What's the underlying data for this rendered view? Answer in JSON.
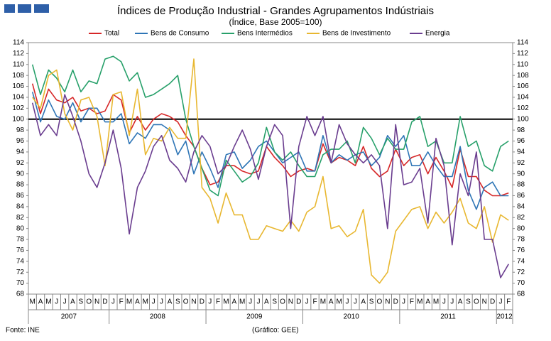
{
  "chart_data": {
    "type": "line",
    "title": "Índices de Produção Industrial - Grandes Agrupamentos  Indústriais",
    "subtitle": "(Índice, Base 2005=100)",
    "source": "Fonte: INE",
    "credit": "(Gráfico: GEE)",
    "categories": [
      "M",
      "A",
      "M",
      "J",
      "J",
      "A",
      "S",
      "O",
      "N",
      "D",
      "J",
      "F",
      "M",
      "A",
      "M",
      "J",
      "J",
      "A",
      "S",
      "O",
      "N",
      "D",
      "J",
      "F",
      "M",
      "A",
      "M",
      "J",
      "J",
      "A",
      "S",
      "O",
      "N",
      "D",
      "J",
      "F",
      "M",
      "A",
      "M",
      "J",
      "J",
      "A",
      "S",
      "O",
      "N",
      "D",
      "J",
      "F",
      "M",
      "A",
      "M",
      "J",
      "J",
      "A",
      "S",
      "O",
      "N",
      "D",
      "J",
      "F"
    ],
    "years": [
      "2007",
      "2008",
      "2009",
      "2010",
      "2011",
      "2012"
    ],
    "ylim": [
      68,
      114
    ],
    "yticks": [
      68,
      70,
      72,
      74,
      76,
      78,
      80,
      82,
      84,
      86,
      88,
      90,
      92,
      94,
      96,
      98,
      100,
      102,
      104,
      106,
      108,
      110,
      112,
      114
    ],
    "reference_line": 100,
    "series": [
      {
        "name": "Total",
        "color": "#d62728",
        "values": [
          106.5,
          101,
          105.5,
          103.5,
          103,
          104,
          101.5,
          102,
          101,
          101.5,
          104.5,
          103.5,
          97.5,
          100.5,
          98,
          100,
          101,
          100.5,
          99.5,
          97,
          95,
          91,
          88,
          88.5,
          91.5,
          91.5,
          90.5,
          90,
          90.5,
          95,
          93,
          91.5,
          89.5,
          90.5,
          91,
          90.5,
          95.5,
          92,
          93,
          92.5,
          91.5,
          95,
          91,
          89.5,
          90.5,
          94.5,
          91.5,
          93,
          93.5,
          90,
          93,
          90.5,
          87.5,
          94.5,
          89.5,
          89.5,
          87,
          86,
          86,
          86.5
        ]
      },
      {
        "name": "Bens de Consumo",
        "color": "#2e75b6",
        "values": [
          105,
          99.5,
          103.5,
          100.5,
          100,
          103,
          99.5,
          102,
          102,
          99.5,
          99.5,
          101,
          95.5,
          97.5,
          96.5,
          99,
          99,
          98,
          93.5,
          96,
          90,
          94,
          91,
          87.5,
          93.5,
          94,
          91,
          92.5,
          95,
          96,
          94,
          92,
          93,
          94,
          90.5,
          90.5,
          97,
          92,
          93.5,
          92.5,
          93.5,
          94,
          91.5,
          93,
          97,
          95,
          97,
          91.5,
          91.5,
          94,
          91.5,
          89.5,
          89.5,
          95,
          87,
          83.5,
          87.5,
          88.5,
          86,
          86
        ]
      },
      {
        "name": "Bens Intermédios",
        "color": "#27a06a",
        "values": [
          110,
          104.5,
          109,
          107.5,
          105,
          109,
          105,
          107,
          106.5,
          111,
          111.5,
          110.5,
          107,
          108.5,
          104,
          104.5,
          105.5,
          106.5,
          108,
          100,
          95,
          91,
          87,
          86,
          92.5,
          90.5,
          88.5,
          89.5,
          92,
          98.5,
          94,
          92.5,
          94,
          91.5,
          89.5,
          89.5,
          93.5,
          94.5,
          94.5,
          96,
          92,
          98.5,
          96.5,
          93.5,
          96.5,
          94.5,
          94.5,
          99.5,
          100.5,
          95,
          96,
          92,
          92,
          100.5,
          95,
          96,
          91.5,
          90.5,
          95,
          96
        ]
      },
      {
        "name": "Bens de Investimento",
        "color": "#e8b730",
        "values": [
          104,
          102,
          108,
          109,
          101,
          98,
          103.5,
          104,
          100.5,
          91.5,
          104.5,
          105,
          97,
          105.5,
          93.5,
          96.5,
          96,
          98.5,
          96.5,
          96.5,
          111,
          87.5,
          85.5,
          81,
          86.5,
          82.5,
          82.5,
          78,
          78,
          80.5,
          80,
          79.5,
          81.5,
          79.5,
          83,
          84,
          89.5,
          80,
          80.5,
          78.5,
          79.5,
          83.5,
          71.5,
          70,
          72,
          79.5,
          81.5,
          83.5,
          84,
          80,
          83,
          81,
          83,
          85.5,
          81,
          80,
          84,
          77.5,
          82.5,
          81.5
        ]
      },
      {
        "name": "Energia",
        "color": "#6a3d8f",
        "values": [
          103,
          97,
          99,
          97,
          104.5,
          100.5,
          96,
          90,
          87.5,
          92,
          98,
          91,
          79,
          87.5,
          90.5,
          95,
          97,
          92.5,
          91,
          88.5,
          94,
          97,
          95,
          90,
          91.5,
          95,
          98,
          94.5,
          89,
          95,
          99,
          97,
          80,
          95,
          100.5,
          97,
          100.5,
          92,
          99,
          95.5,
          93.5,
          92,
          93.5,
          91.5,
          80,
          99,
          88,
          88.5,
          91,
          81,
          96.5,
          91.5,
          77,
          90,
          86,
          94,
          78,
          78,
          71,
          73.5
        ]
      }
    ]
  }
}
